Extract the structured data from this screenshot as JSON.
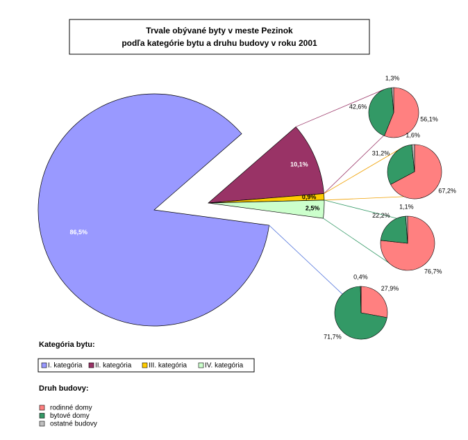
{
  "chart_data": {
    "type": "pie",
    "title": [
      "Trvale obývané byty v meste Pezinok",
      "podľa kategórie bytu a druhu budovy v roku 2001"
    ],
    "legend_title": "Kategória bytu:",
    "categories": [
      "I. kategória",
      "II. kategória",
      "III. kategória",
      "IV. kategória"
    ],
    "values": [
      86.5,
      10.1,
      0.9,
      2.5
    ],
    "value_labels": [
      "86,5%",
      "10,1%",
      "0,9%",
      "2,5%"
    ],
    "colors": [
      "#9999ff",
      "#993366",
      "#ffcc00",
      "#ccffcc"
    ],
    "breakdown": {
      "legend_title": "Druh budovy:",
      "categories": [
        "rodinné domy",
        "bytové domy",
        "ostatné budovy"
      ],
      "colors": [
        "#ff8080",
        "#339966",
        "#c0c0c0"
      ],
      "pies": [
        {
          "values": [
            27.9,
            71.7,
            0.4
          ],
          "value_labels": [
            "27,9%",
            "71,7%",
            "0,4%"
          ]
        },
        {
          "values": [
            56.1,
            42.6,
            1.3
          ],
          "value_labels": [
            "56,1%",
            "42,6%",
            "1,3%"
          ]
        },
        {
          "values": [
            67.2,
            31.2,
            1.6
          ],
          "value_labels": [
            "67,2%",
            "31,2%",
            "1,6%"
          ]
        },
        {
          "values": [
            76.7,
            22.2,
            1.1
          ],
          "value_labels": [
            "76,7%",
            "22,2%",
            "1,1%"
          ]
        }
      ]
    }
  }
}
